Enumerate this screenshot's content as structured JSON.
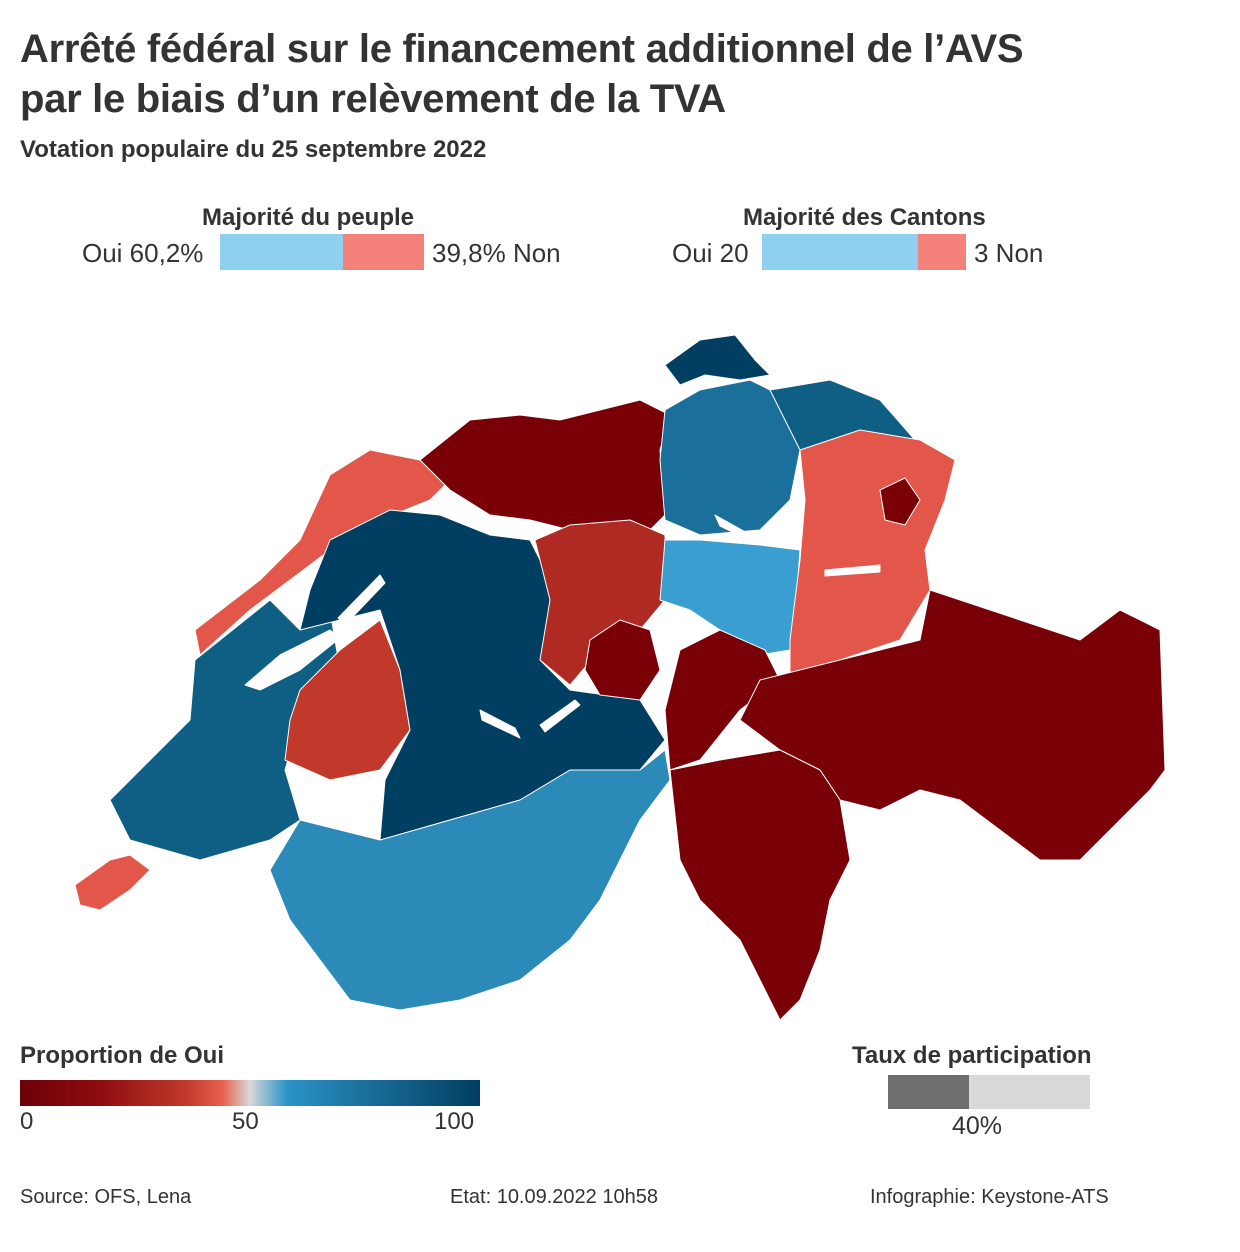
{
  "title_line1": "Arrêté fédéral sur le financement additionnel de l’AVS",
  "title_line2": "par le biais d’un relèvement de la TVA",
  "subtitle": "Votation populaire du 25 septembre 2022",
  "people": {
    "heading": "Majorité du peuple",
    "yes_label": "Oui 60,2%",
    "no_label": "39,8% Non",
    "yes_share": 60.2,
    "no_share": 39.8,
    "yes_color": "#8fd0ef",
    "no_color": "#f5827a"
  },
  "cantons": {
    "heading": "Majorité des Cantons",
    "yes_label": "Oui 20",
    "no_label": "3 Non",
    "yes_count": 20,
    "no_count": 3,
    "yes_color": "#8fd0ef",
    "no_color": "#f5827a"
  },
  "legend": {
    "title": "Proportion de Oui",
    "tick_min": "0",
    "tick_mid": "50",
    "tick_max": "100",
    "colors": [
      "#6d0008",
      "#c0392b",
      "#e8604c",
      "#d8d8d8",
      "#2b93c7",
      "#003e62"
    ]
  },
  "participation": {
    "title": "Taux de participation",
    "value_label": "40%",
    "value": 40,
    "fill_color": "#6e6e6e",
    "rest_color": "#d9d9d9"
  },
  "footer": {
    "source": "Source: OFS, Lena",
    "etat": "Etat: 10.09.2022 10h58",
    "credit": "Infographie: Keystone-ATS"
  },
  "map_colors": {
    "very_high_yes": "#003e62",
    "high_yes": "#0f5f85",
    "mid_yes": "#2b8ab8",
    "light_yes": "#3a9fd0",
    "light_no": "#e2574a",
    "mid_no": "#b02a24",
    "high_no": "#7a0008"
  }
}
